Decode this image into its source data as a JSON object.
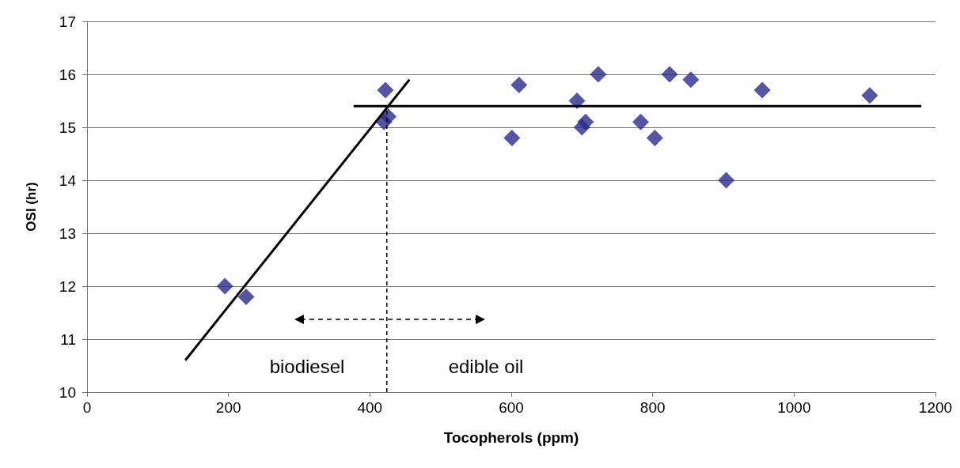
{
  "chart_data": {
    "type": "scatter",
    "xlabel": "Tocopherols (ppm)",
    "ylabel": "OSI (hr)",
    "xlim": [
      0,
      1200
    ],
    "xticks": [
      0,
      200,
      400,
      600,
      800,
      1000,
      1200
    ],
    "ylim": [
      10,
      17
    ],
    "yticks": [
      10,
      11,
      12,
      13,
      14,
      15,
      16,
      17
    ],
    "grid": "y",
    "marker": "diamond",
    "series": [
      {
        "color": "#2b2b8c",
        "x": [
          195,
          225,
          422,
          426,
          420,
          601,
          611,
          693,
          705,
          700,
          723,
          783,
          803,
          824,
          854,
          904,
          955,
          1107
        ],
        "values": [
          12.0,
          11.8,
          15.7,
          15.2,
          15.1,
          14.8,
          15.8,
          15.5,
          15.1,
          15.0,
          16.0,
          15.1,
          14.8,
          16.0,
          15.9,
          14.0,
          15.7,
          15.6
        ]
      },
      {
        "type": "line",
        "color": "#000000",
        "marker": "none",
        "line_style": "solid",
        "x": [
          139,
          456
        ],
        "values": [
          10.6,
          15.9
        ]
      },
      {
        "type": "line",
        "color": "#000000",
        "marker": "none",
        "line_style": "solid",
        "x": [
          377,
          1180
        ],
        "values": [
          15.4,
          15.4
        ]
      },
      {
        "type": "line",
        "color": "#000000",
        "marker": "none",
        "line_style": "dashed",
        "x": [
          424,
          424
        ],
        "values": [
          10,
          15.4
        ]
      }
    ],
    "annotations": [
      "biodiesel",
      "edible oil"
    ]
  }
}
